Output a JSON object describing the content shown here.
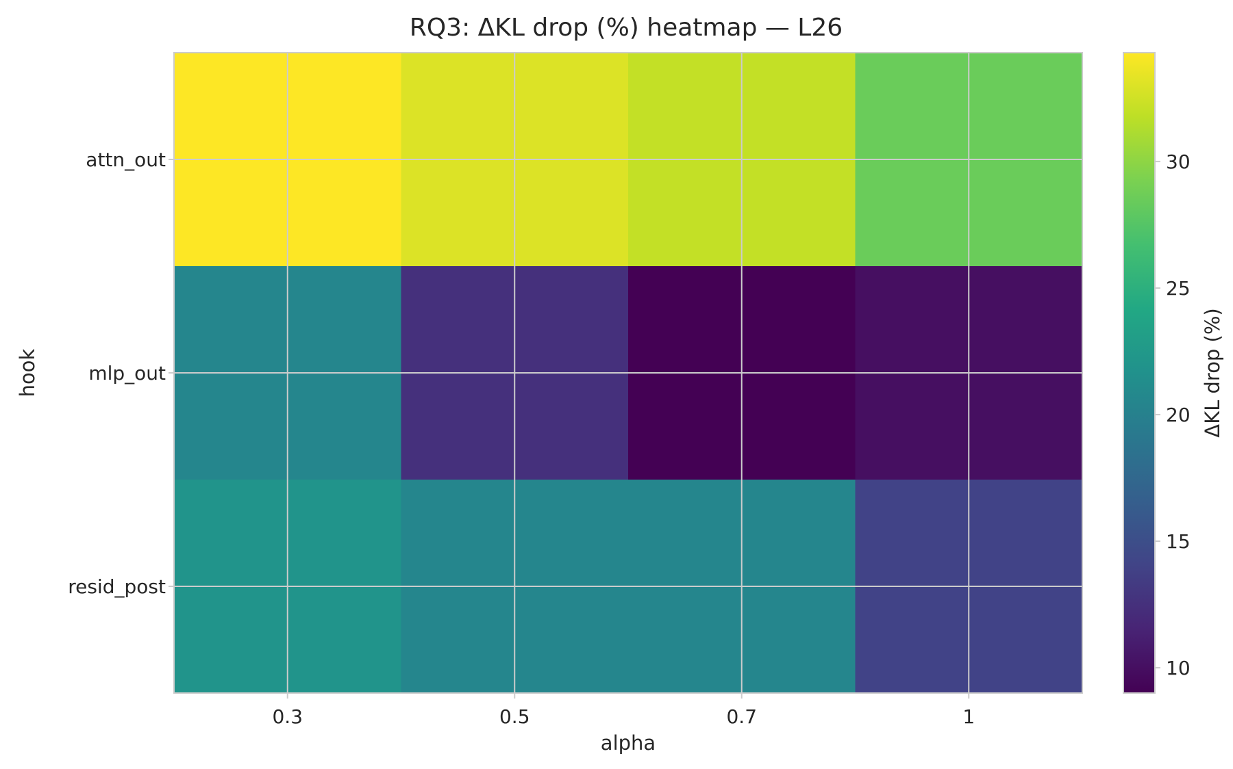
{
  "chart_data": {
    "type": "heatmap",
    "title": "RQ3: ΔKL drop (%) heatmap — L26",
    "xlabel": "alpha",
    "ylabel": "hook",
    "x_categories": [
      "0.3",
      "0.5",
      "0.7",
      "1"
    ],
    "y_categories": [
      "attn_out",
      "mlp_out",
      "resid_post"
    ],
    "values": [
      [
        34.3,
        33.0,
        32.0,
        28.5
      ],
      [
        20.5,
        12.5,
        9.0,
        10.0
      ],
      [
        22.0,
        20.5,
        20.5,
        14.0
      ]
    ],
    "colormap": "viridis",
    "colorbar": {
      "label": "ΔKL drop (%)",
      "range": [
        9.0,
        34.3
      ],
      "ticks": [
        10,
        15,
        20,
        25,
        30
      ]
    },
    "grid": true
  }
}
